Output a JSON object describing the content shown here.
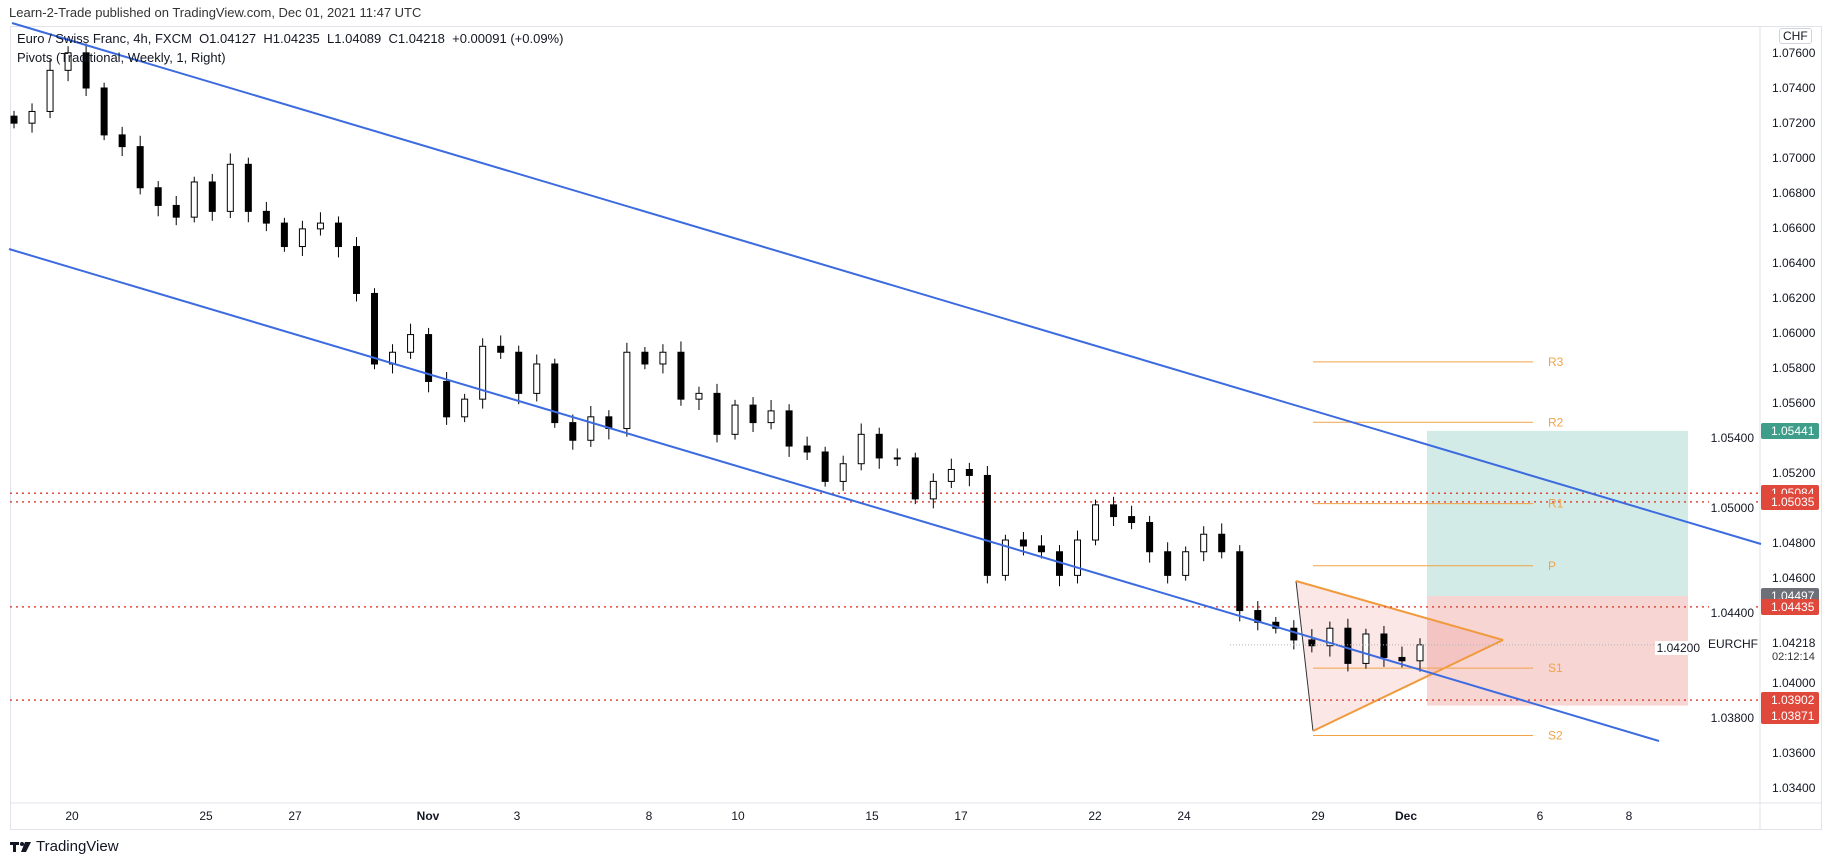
{
  "header": {
    "published": "Learn-2-Trade published on TradingView.com, Dec 01, 2021 11:47 UTC"
  },
  "legend": {
    "symbol": "Euro / Swiss Franc, 4h, FXCM",
    "open": "O1.04127",
    "high": "H1.04235",
    "low": "L1.04089",
    "close": "C1.04218",
    "change": "+0.00091 (+0.09%)",
    "indicator": "Pivots (Traditional, Weekly, 1, Right)"
  },
  "currency_badge": "CHF",
  "symbol_label": "EURCHF",
  "countdown": "02:12:14",
  "branding": "TradingView",
  "colors": {
    "up": "#ffffff",
    "down": "#000000",
    "channel": "#3c6be0",
    "pivot": "#f0a347",
    "triangle": "#f09a3e",
    "red": "#e0483c",
    "green": "#3f9e8a",
    "gray": "#6e7079"
  },
  "chart_data": {
    "type": "candlestick",
    "ylim": [
      1.033,
      1.077
    ],
    "y_ticks": [
      "1.07600",
      "1.07400",
      "1.07200",
      "1.07000",
      "1.06800",
      "1.06600",
      "1.06400",
      "1.06200",
      "1.06000",
      "1.05800",
      "1.05600",
      "1.05400",
      "1.05200",
      "1.05000",
      "1.04800",
      "1.04600",
      "1.04400",
      "1.04200",
      "1.04000",
      "1.03800",
      "1.03600",
      "1.03400"
    ],
    "x_ticks": [
      "20",
      "25",
      "27",
      "Nov",
      "3",
      "8",
      "10",
      "15",
      "17",
      "22",
      "24",
      "29",
      "Dec",
      "6",
      "8"
    ],
    "close": [
      1.07199,
      1.07266,
      1.07501,
      1.07601,
      1.074,
      1.07132,
      1.07065,
      1.0683,
      1.06729,
      1.06662,
      1.06863,
      1.06695,
      1.06964,
      1.06695,
      1.06628,
      1.06494,
      1.06595,
      1.06628,
      1.06494,
      1.06226,
      1.05823,
      1.0589,
      1.05991,
      1.05723,
      1.05521,
      1.05622,
      1.05924,
      1.0589,
      1.05655,
      1.05823,
      1.05488,
      1.05387,
      1.05521,
      1.05454,
      1.0589,
      1.05823,
      1.0589,
      1.05622,
      1.05655,
      1.05421,
      1.05588,
      1.05488,
      1.05555,
      1.05354,
      1.0532,
      1.05152,
      1.05253,
      1.05421,
      1.05286,
      1.05286,
      1.05052,
      1.05152,
      1.0522,
      1.05186,
      1.04615,
      1.04817,
      1.04783,
      1.0475,
      1.04615,
      1.04817,
      1.05018,
      1.04951,
      1.04917,
      1.0475,
      1.04615,
      1.0475,
      1.0485,
      1.0475,
      1.04414,
      1.04347,
      1.04313,
      1.04246,
      1.04213,
      1.04313,
      1.04112,
      1.0428,
      1.04146,
      1.04127,
      1.04218
    ],
    "pivots": [
      {
        "name": "R3",
        "value": 1.05835
      },
      {
        "name": "R2",
        "value": 1.0549
      },
      {
        "name": "R1",
        "value": 1.05025
      },
      {
        "name": "P",
        "value": 1.0467
      },
      {
        "name": "S1",
        "value": 1.04085
      },
      {
        "name": "S2",
        "value": 1.037
      }
    ],
    "horizontal_levels": [
      "1.05084",
      "1.05035",
      "1.04435",
      "1.03902"
    ],
    "long_position": {
      "target": "1.05441",
      "entry": "1.04497",
      "stop": "1.03871"
    },
    "last_price": "1.04218"
  }
}
